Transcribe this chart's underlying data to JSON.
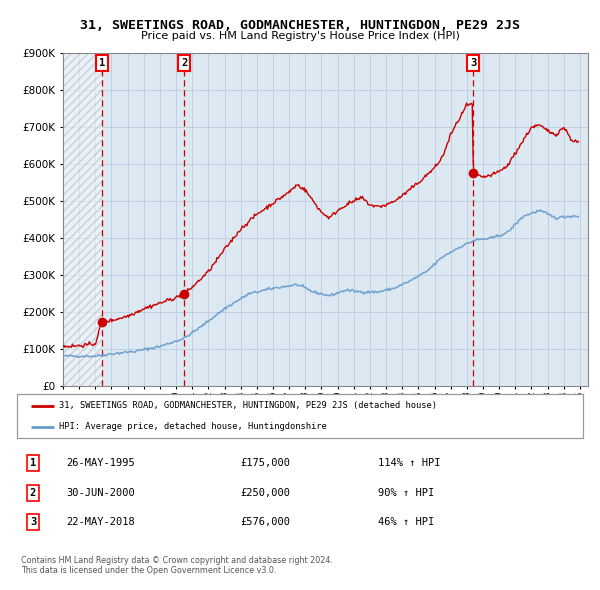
{
  "title": "31, SWEETINGS ROAD, GODMANCHESTER, HUNTINGDON, PE29 2JS",
  "subtitle": "Price paid vs. HM Land Registry's House Price Index (HPI)",
  "legend_line1": "31, SWEETINGS ROAD, GODMANCHESTER, HUNTINGDON, PE29 2JS (detached house)",
  "legend_line2": "HPI: Average price, detached house, Huntingdonshire",
  "footer1": "Contains HM Land Registry data © Crown copyright and database right 2024.",
  "footer2": "This data is licensed under the Open Government Licence v3.0.",
  "transactions": [
    {
      "num": 1,
      "date": "26-MAY-1995",
      "price": 175000,
      "pct": "114%",
      "dir": "↑"
    },
    {
      "num": 2,
      "date": "30-JUN-2000",
      "price": 250000,
      "pct": "90%",
      "dir": "↑"
    },
    {
      "num": 3,
      "date": "22-MAY-2018",
      "price": 576000,
      "pct": "46%",
      "dir": "↑"
    }
  ],
  "transaction_dates_decimal": [
    1995.4,
    2000.5,
    2018.4
  ],
  "transaction_prices": [
    175000,
    250000,
    576000
  ],
  "red_line_color": "#cc0000",
  "blue_line_color": "#6699cc",
  "dot_color": "#cc0000",
  "dashed_color": "#cc0000",
  "grid_color": "#c0d0e0",
  "background_color": "#dce8f2",
  "ylim": [
    0,
    900000
  ],
  "xlim_start": 1993.0,
  "xlim_end": 2025.5
}
